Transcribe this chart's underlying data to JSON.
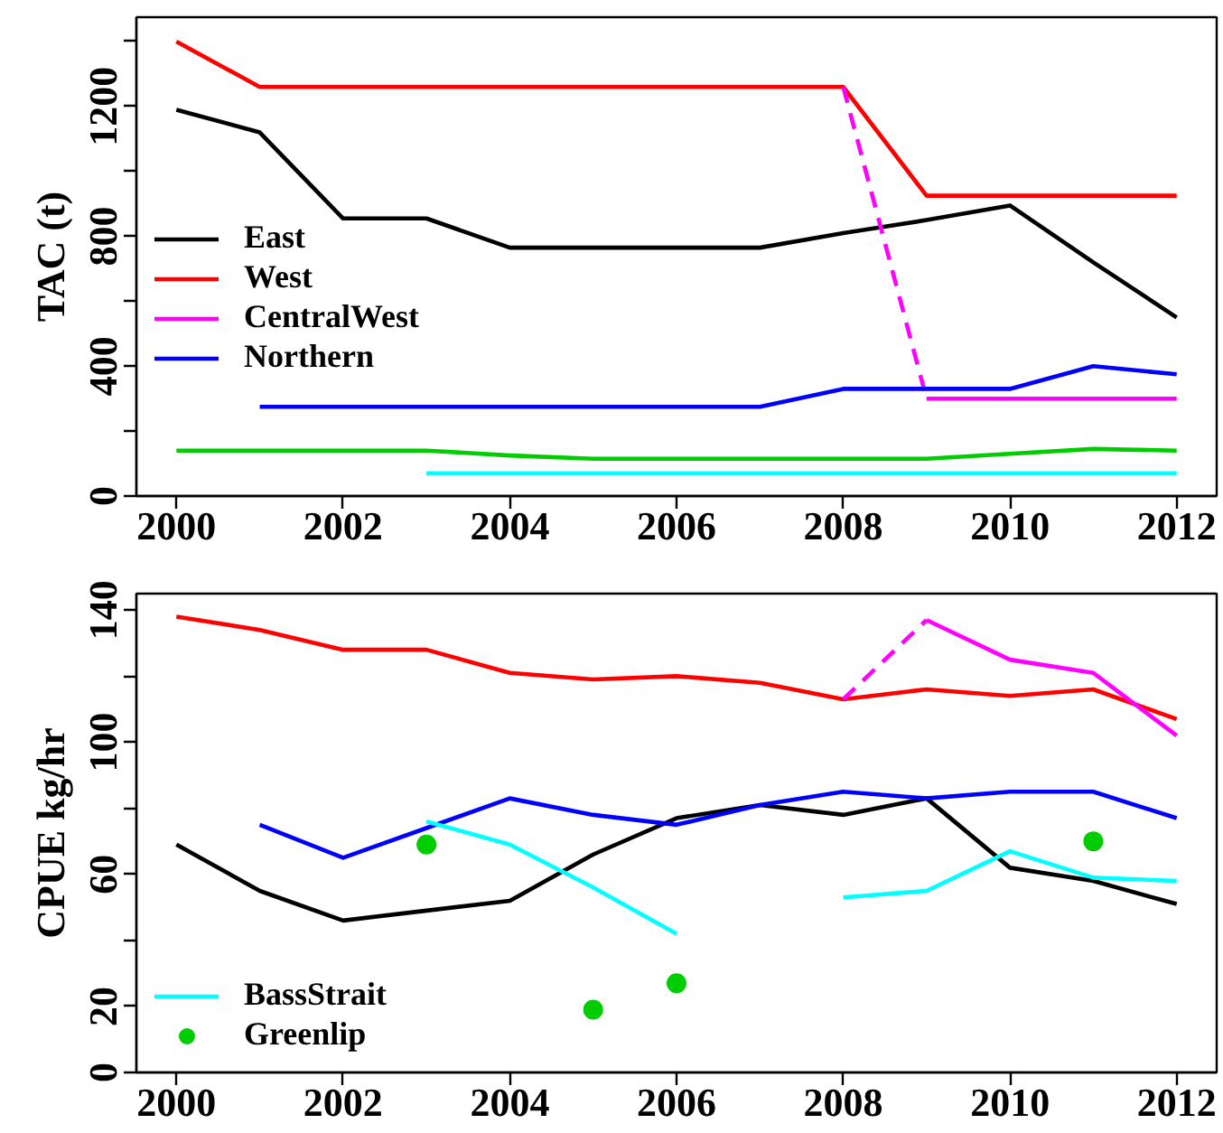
{
  "chart_data": [
    {
      "type": "line",
      "ylabel": "TAC (t)",
      "x": [
        2000,
        2001,
        2002,
        2003,
        2004,
        2005,
        2006,
        2007,
        2008,
        2009,
        2010,
        2011,
        2012
      ],
      "xlim": [
        1999.52,
        2012.48
      ],
      "xticks": [
        2000,
        2002,
        2004,
        2006,
        2008,
        2010,
        2012
      ],
      "ylim": [
        0,
        1475
      ],
      "yticks": [
        0,
        {
          "value": 200,
          "label": null
        },
        400,
        {
          "value": 600,
          "label": null
        },
        800,
        {
          "value": 1000,
          "label": null
        },
        1200,
        {
          "value": 1400,
          "label": null
        }
      ],
      "legend": "left",
      "series": [
        {
          "name": "East",
          "color": "#000000",
          "values": [
            1190,
            1120,
            855,
            855,
            765,
            765,
            765,
            765,
            810,
            850,
            895,
            720,
            550
          ]
        },
        {
          "name": "West",
          "color": "#ff0000",
          "values": [
            1400,
            1260,
            1260,
            1260,
            1260,
            1260,
            1260,
            1260,
            1260,
            925,
            925,
            925,
            925
          ]
        },
        {
          "color": "#ff00ff",
          "line_style": "dashed",
          "values": [
            null,
            null,
            null,
            null,
            null,
            null,
            null,
            null,
            1260,
            300,
            null,
            null,
            null
          ]
        },
        {
          "name": "CentralWest",
          "color": "#ff00ff",
          "values": [
            null,
            null,
            null,
            null,
            null,
            null,
            null,
            null,
            null,
            300,
            300,
            300,
            300
          ]
        },
        {
          "name": "Northern",
          "color": "#0000ff",
          "values": [
            null,
            275,
            275,
            275,
            275,
            275,
            275,
            275,
            330,
            330,
            330,
            400,
            375
          ]
        },
        {
          "color": "#00cd00",
          "values": [
            140,
            140,
            140,
            140,
            125,
            115,
            115,
            115,
            115,
            115,
            130,
            145,
            140
          ]
        },
        {
          "color": "#00ffff",
          "values": [
            null,
            null,
            null,
            70,
            70,
            70,
            70,
            70,
            70,
            70,
            70,
            70,
            70
          ]
        }
      ]
    },
    {
      "type": "line",
      "ylabel": "CPUE kg/hr",
      "x": [
        2000,
        2001,
        2002,
        2003,
        2004,
        2005,
        2006,
        2007,
        2008,
        2009,
        2010,
        2011,
        2012
      ],
      "xlim": [
        1999.52,
        2012.48
      ],
      "xticks": [
        2000,
        2002,
        2004,
        2006,
        2008,
        2010,
        2012
      ],
      "ylim": [
        0,
        145
      ],
      "yticks": [
        0,
        20,
        {
          "value": 40,
          "label": null
        },
        60,
        {
          "value": 80,
          "label": null
        },
        100,
        {
          "value": 120,
          "label": null
        },
        140
      ],
      "legend": "bottom left",
      "series": [
        {
          "color": "#000000",
          "values": [
            69,
            55,
            46,
            49,
            52,
            66,
            77,
            81,
            78,
            83,
            62,
            58,
            51
          ]
        },
        {
          "color": "#ff0000",
          "values": [
            138,
            134,
            128,
            128,
            121,
            119,
            120,
            118,
            113,
            116,
            114,
            116,
            107
          ]
        },
        {
          "color": "#ff00ff",
          "line_style": "dashed",
          "values": [
            null,
            null,
            null,
            null,
            null,
            null,
            null,
            null,
            113,
            137,
            null,
            null,
            null
          ]
        },
        {
          "color": "#ff00ff",
          "values": [
            null,
            null,
            null,
            null,
            null,
            null,
            null,
            null,
            null,
            137,
            125,
            121,
            102
          ]
        },
        {
          "color": "#0000ff",
          "values": [
            null,
            75,
            65,
            74,
            83,
            78,
            75,
            81,
            85,
            83,
            85,
            85,
            77
          ]
        },
        {
          "name": "BassStrait",
          "color": "#00ffff",
          "values": [
            null,
            null,
            null,
            76,
            69,
            56,
            42,
            null,
            53,
            55,
            67,
            59,
            58
          ]
        },
        {
          "name": "Greenlip",
          "type": "scatter",
          "marker": "circle",
          "color": "#00cd00",
          "values": [
            null,
            null,
            null,
            69,
            null,
            19,
            27,
            null,
            null,
            null,
            null,
            70,
            null
          ]
        }
      ]
    }
  ]
}
